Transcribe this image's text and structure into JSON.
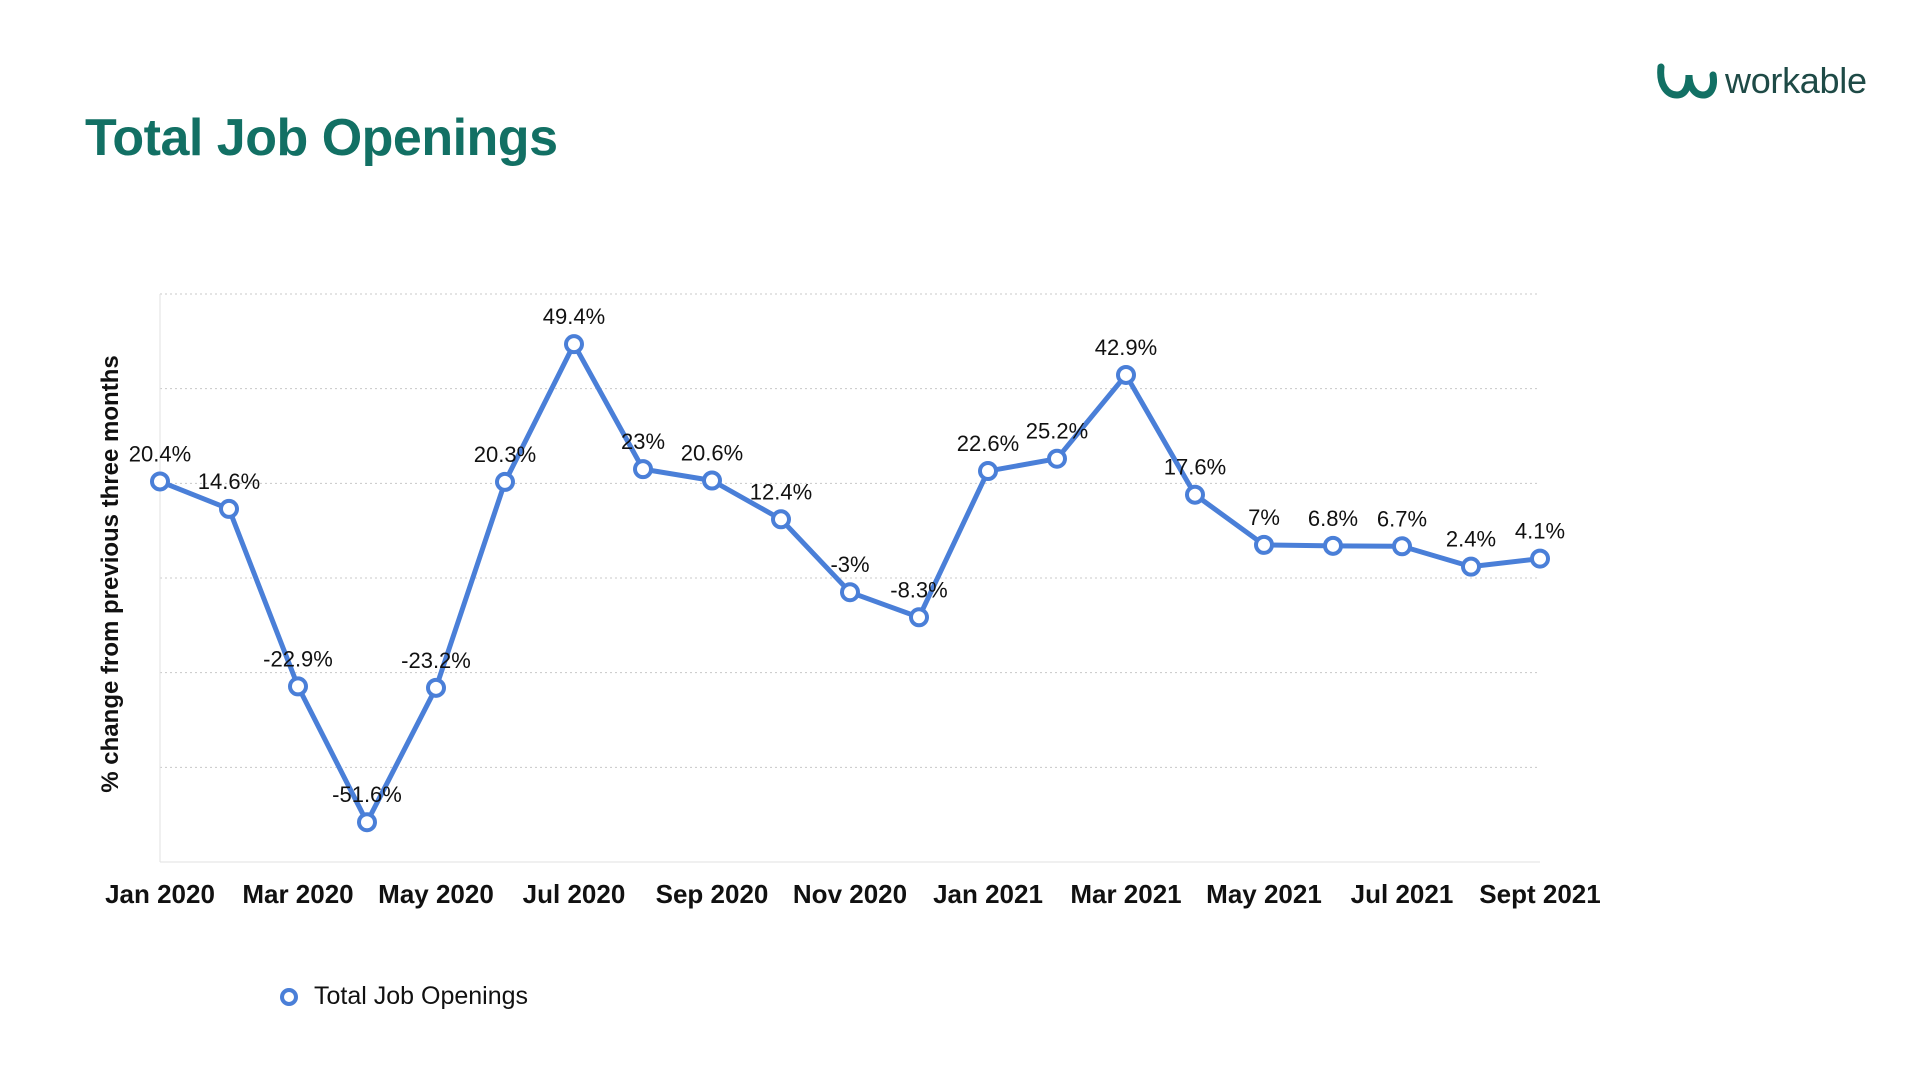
{
  "header": {
    "title": "Total Job Openings",
    "logo_text": "workable",
    "logo_icon": "workable-w-icon"
  },
  "colors": {
    "title": "#127064",
    "series": "#4A7FD8",
    "logo_icon": "#127064",
    "grid": "#C8C8C8"
  },
  "chart_data": {
    "type": "line",
    "title": "Total Job Openings",
    "xlabel": "",
    "ylabel": "% change from previous three months",
    "x": [
      "Jan 2020",
      "Feb 2020",
      "Mar 2020",
      "Apr 2020",
      "May 2020",
      "Jun 2020",
      "Jul 2020",
      "Aug 2020",
      "Sep 2020",
      "Oct 2020",
      "Nov 2020",
      "Dec 2020",
      "Jan 2021",
      "Feb 2021",
      "Mar 2021",
      "Apr 2021",
      "May 2021",
      "Jun 2021",
      "Jul 2021",
      "Aug 2021",
      "Sept 2021"
    ],
    "x_tick_labels": [
      "Jan 2020",
      "Mar 2020",
      "May 2020",
      "Jul 2020",
      "Sep 2020",
      "Nov 2020",
      "Jan 2021",
      "Mar 2021",
      "May 2021",
      "Jul 2021",
      "Sept 2021"
    ],
    "series": [
      {
        "name": "Total Job Openings",
        "values": [
          20.4,
          14.6,
          -22.9,
          -51.6,
          -23.2,
          20.3,
          49.4,
          23,
          20.6,
          12.4,
          -3,
          -8.3,
          22.6,
          25.2,
          42.9,
          17.6,
          7,
          6.8,
          6.7,
          2.4,
          4.1
        ],
        "labels": [
          "20.4%",
          "14.6%",
          "-22.9%",
          "-51.6%",
          "-23.2%",
          "20.3%",
          "49.4%",
          "23%",
          "20.6%",
          "12.4%",
          "-3%",
          "-8.3%",
          "22.6%",
          "25.2%",
          "42.9%",
          "17.6%",
          "7%",
          "6.8%",
          "6.7%",
          "2.4%",
          "4.1%"
        ]
      }
    ],
    "ylim": [
      -60,
      60
    ],
    "y_grid_step": 20,
    "y_tick_labels_shown": false,
    "grid": true,
    "legend_position": "bottom-left"
  },
  "legend": {
    "label": "Total Job Openings"
  }
}
